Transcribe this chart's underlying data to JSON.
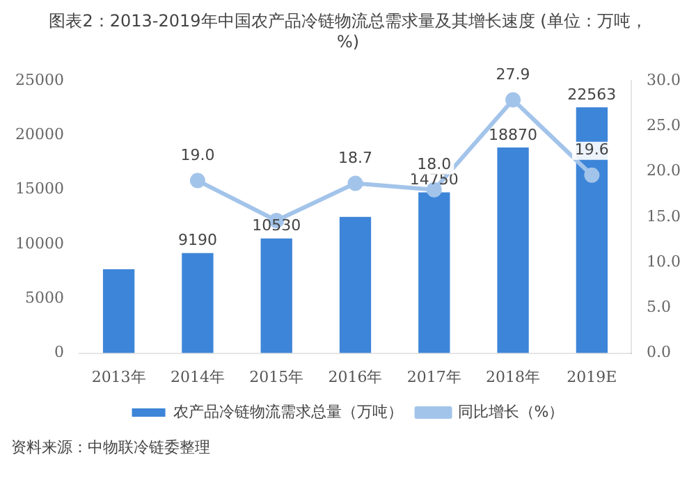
{
  "chart_data": {
    "type": "bar",
    "title": "图表2：2013-2019年中国农产品冷链物流总需求量及其增长速度 (单位：万吨，%)",
    "categories": [
      "2013年",
      "2014年",
      "2015年",
      "2016年",
      "2017年",
      "2018年",
      "2019E"
    ],
    "series": [
      {
        "name": "农产品冷链物流需求总量（万吨）",
        "color": "#3d85d8",
        "values": [
          7700,
          9190,
          10530,
          12500,
          14750,
          18870,
          22563
        ],
        "value_labels": [
          null,
          "9190",
          "10530",
          null,
          "14750",
          "18870",
          "22563"
        ]
      },
      {
        "name": "同比增长（%）",
        "type": "line",
        "axis": "y2",
        "color": "#a3c4ea",
        "marker": "circle",
        "values": [
          null,
          19.0,
          14.6,
          18.7,
          18.0,
          27.9,
          19.6
        ],
        "value_labels": [
          null,
          "19.0",
          null,
          "18.7",
          "18.0",
          "27.9",
          "19.6"
        ]
      }
    ],
    "ylim": [
      0,
      25000
    ],
    "yticks": [
      0,
      5000,
      10000,
      15000,
      20000,
      25000
    ],
    "y2lim": [
      0,
      30
    ],
    "y2ticks": [
      {
        "value": 0,
        "label": "0.0"
      },
      {
        "value": 5,
        "label": "5.0"
      },
      {
        "value": 10,
        "label": "10.0"
      },
      {
        "value": 15,
        "label": "15.0"
      },
      {
        "value": 20,
        "label": "20.0"
      },
      {
        "value": 25,
        "label": "25.0"
      },
      {
        "value": 30,
        "label": "30.0"
      }
    ],
    "grid": false,
    "legend": "bottom",
    "annotations": [
      "资料来源：中物联冷链委整理"
    ]
  }
}
